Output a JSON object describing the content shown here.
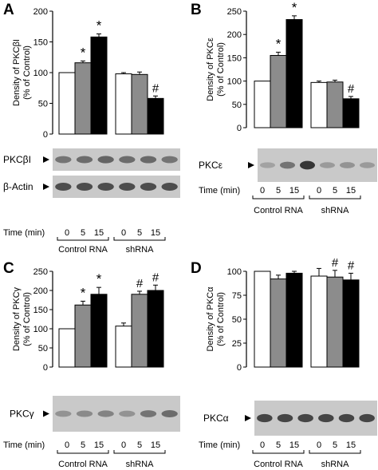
{
  "colors": {
    "control": "#ffffff",
    "min5": "#8c8c8c",
    "min15": "#000000",
    "axis": "#000000",
    "blot_bg": "#c9c9c9",
    "band": "#2e2e2e"
  },
  "time_label": "Time (min)",
  "group_labels": [
    "Control RNA",
    "shRNA"
  ],
  "time_points": [
    "0",
    "5",
    "15",
    "0",
    "5",
    "15"
  ],
  "chart_data": [
    {
      "panel": "A",
      "type": "bar",
      "ylabel_line1": "Density of PKCβI",
      "ylabel_line2": "(% of Control)",
      "ylim": [
        0,
        200
      ],
      "yticks": [
        "0",
        "50",
        "100",
        "150",
        "200"
      ],
      "categories": [
        "Control RNA 0",
        "Control RNA 5",
        "Control RNA 15",
        "shRNA 0",
        "shRNA 5",
        "shRNA 15"
      ],
      "values": [
        100,
        116,
        158,
        98,
        97,
        58
      ],
      "errors": [
        0,
        3,
        5,
        2,
        4,
        4
      ],
      "annotations": [
        "",
        "*",
        "*",
        "",
        "",
        "#"
      ],
      "blots": [
        {
          "label": "PKCβI",
          "intensity": [
            0.55,
            0.6,
            0.65,
            0.6,
            0.62,
            0.55
          ]
        },
        {
          "label": "β-Actin",
          "intensity": [
            0.8,
            0.8,
            0.8,
            0.8,
            0.8,
            0.8
          ]
        }
      ]
    },
    {
      "panel": "B",
      "type": "bar",
      "ylabel_line1": "Density of PKCε",
      "ylabel_line2": "(% of Control)",
      "ylim": [
        0,
        250
      ],
      "yticks": [
        "0",
        "50",
        "100",
        "150",
        "200",
        "250"
      ],
      "categories": [
        "Control RNA 0",
        "Control RNA 5",
        "Control RNA 15",
        "shRNA 0",
        "shRNA 5",
        "shRNA 15"
      ],
      "values": [
        100,
        155,
        232,
        97,
        98,
        62
      ],
      "errors": [
        0,
        7,
        8,
        3,
        4,
        5
      ],
      "annotations": [
        "",
        "*",
        "*",
        "",
        "",
        "#"
      ],
      "blots": [
        {
          "label": "PKCε",
          "intensity": [
            0.25,
            0.55,
            0.95,
            0.3,
            0.35,
            0.3
          ]
        }
      ]
    },
    {
      "panel": "C",
      "type": "bar",
      "ylabel_line1": "Density of PKCγ",
      "ylabel_line2": "(% of Control)",
      "ylim": [
        0,
        250
      ],
      "yticks": [
        "0",
        "50",
        "100",
        "150",
        "200",
        "250"
      ],
      "categories": [
        "Control RNA 0",
        "Control RNA 5",
        "Control RNA 15",
        "shRNA 0",
        "shRNA 5",
        "shRNA 15"
      ],
      "values": [
        100,
        162,
        190,
        107,
        190,
        200
      ],
      "errors": [
        0,
        10,
        18,
        8,
        8,
        14
      ],
      "annotations": [
        "",
        "*",
        "*",
        "",
        "#",
        "#"
      ],
      "blots": [
        {
          "label": "PKCγ",
          "intensity": [
            0.35,
            0.4,
            0.45,
            0.35,
            0.55,
            0.6
          ]
        }
      ]
    },
    {
      "panel": "D",
      "type": "bar",
      "ylabel_line1": "Density of PKCα",
      "ylabel_line2": "(% of Control)",
      "ylim": [
        0,
        100
      ],
      "yticks": [
        "0",
        "25",
        "50",
        "75",
        "100"
      ],
      "categories": [
        "Control RNA 0",
        "Control RNA 5",
        "Control RNA 15",
        "shRNA 0",
        "shRNA 5",
        "shRNA 15"
      ],
      "values": [
        100,
        92,
        98,
        95,
        94,
        91
      ],
      "errors": [
        0,
        4,
        2,
        8,
        7,
        7
      ],
      "annotations": [
        "",
        "",
        "",
        "",
        "#",
        "#"
      ],
      "blots": [
        {
          "label": "PKCα",
          "intensity": [
            0.85,
            0.85,
            0.85,
            0.85,
            0.85,
            0.85
          ]
        }
      ]
    }
  ]
}
